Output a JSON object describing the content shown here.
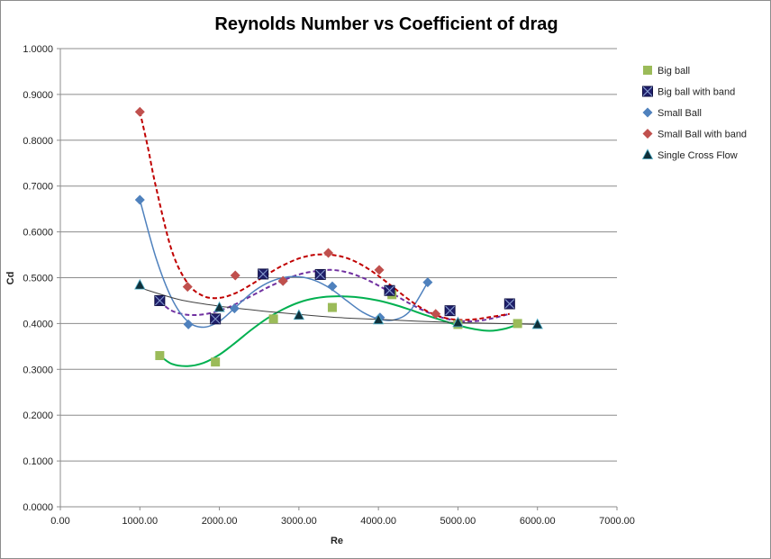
{
  "chart_data": {
    "type": "scatter",
    "title": "Reynolds Number vs Coefficient of drag",
    "xlabel": "Re",
    "ylabel": "Cd",
    "xlim": [
      0,
      7000
    ],
    "ylim": [
      0,
      1.0
    ],
    "xticks": [
      "0.00",
      "1000.00",
      "2000.00",
      "3000.00",
      "4000.00",
      "5000.00",
      "6000.00",
      "7000.00"
    ],
    "yticks": [
      "0.0000",
      "0.1000",
      "0.2000",
      "0.3000",
      "0.4000",
      "0.5000",
      "0.6000",
      "0.7000",
      "0.8000",
      "0.9000",
      "1.0000"
    ],
    "grid": "horizontal",
    "legend_position": "right",
    "series": [
      {
        "name": "Big ball",
        "marker": "square",
        "color": "#9bbb59",
        "x": [
          1250,
          1950,
          2680,
          3420,
          4170,
          5000,
          5750
        ],
        "y": [
          0.33,
          0.316,
          0.41,
          0.435,
          0.463,
          0.398,
          0.4
        ],
        "trend": {
          "style": "solid",
          "color": "#00b050",
          "x": [
            1250,
            1400,
            1600,
            1800,
            2000,
            2200,
            2400,
            2600,
            2800,
            3000,
            3200,
            3400,
            3600,
            3800,
            4000,
            4200,
            4400,
            4600,
            4800,
            5000,
            5200,
            5400,
            5600,
            5750
          ],
          "y": [
            0.33,
            0.312,
            0.307,
            0.314,
            0.332,
            0.358,
            0.386,
            0.411,
            0.431,
            0.446,
            0.455,
            0.459,
            0.459,
            0.456,
            0.45,
            0.441,
            0.43,
            0.418,
            0.407,
            0.396,
            0.388,
            0.384,
            0.389,
            0.398
          ]
        }
      },
      {
        "name": "Big ball with band",
        "marker": "square-x",
        "color": "#1f1f6b",
        "x": [
          1250,
          1950,
          2550,
          3270,
          4140,
          4900,
          5650
        ],
        "y": [
          0.45,
          0.41,
          0.508,
          0.507,
          0.472,
          0.428,
          0.443
        ],
        "trend": {
          "style": "dashed",
          "color": "#7030a0",
          "x": [
            1250,
            1400,
            1600,
            1800,
            2000,
            2200,
            2400,
            2600,
            2800,
            3000,
            3200,
            3400,
            3600,
            3800,
            4000,
            4200,
            4400,
            4600,
            4800,
            5000,
            5200,
            5400,
            5650
          ],
          "y": [
            0.448,
            0.428,
            0.419,
            0.42,
            0.428,
            0.442,
            0.46,
            0.478,
            0.494,
            0.507,
            0.514,
            0.517,
            0.512,
            0.5,
            0.483,
            0.463,
            0.443,
            0.426,
            0.413,
            0.406,
            0.405,
            0.41,
            0.421
          ]
        }
      },
      {
        "name": "Small Ball",
        "marker": "diamond",
        "color": "#4f81bd",
        "x": [
          1000,
          1610,
          2190,
          2800,
          3420,
          4020,
          4620
        ],
        "y": [
          0.67,
          0.398,
          0.433,
          0.493,
          0.481,
          0.413,
          0.49
        ],
        "trend": {
          "style": "solid",
          "color": "#4f81bd",
          "x": [
            1000,
            1200,
            1400,
            1600,
            1800,
            2000,
            2200,
            2400,
            2600,
            2800,
            3000,
            3200,
            3400,
            3600,
            3800,
            4000,
            4200,
            4400,
            4620
          ],
          "y": [
            0.67,
            0.545,
            0.455,
            0.405,
            0.392,
            0.405,
            0.435,
            0.466,
            0.488,
            0.5,
            0.502,
            0.494,
            0.476,
            0.45,
            0.425,
            0.41,
            0.408,
            0.428,
            0.49
          ]
        }
      },
      {
        "name": "Small Ball with band",
        "marker": "diamond",
        "color": "#c0504d",
        "x": [
          1000,
          1600,
          2200,
          2800,
          3370,
          4010,
          4720
        ],
        "y": [
          0.862,
          0.48,
          0.505,
          0.493,
          0.554,
          0.517,
          0.421
        ],
        "trend": {
          "style": "dashed",
          "color": "#c00000",
          "x": [
            1000,
            1100,
            1200,
            1400,
            1600,
            1800,
            2000,
            2200,
            2400,
            2600,
            2800,
            3000,
            3200,
            3400,
            3600,
            3800,
            4000,
            4200,
            4400,
            4600,
            4800,
            5000,
            5200,
            5400,
            5650
          ],
          "y": [
            0.862,
            0.785,
            0.7,
            0.56,
            0.488,
            0.46,
            0.456,
            0.466,
            0.485,
            0.507,
            0.527,
            0.542,
            0.55,
            0.55,
            0.543,
            0.527,
            0.504,
            0.477,
            0.45,
            0.428,
            0.414,
            0.408,
            0.409,
            0.414,
            0.421
          ]
        }
      },
      {
        "name": "Single Cross Flow",
        "marker": "triangle",
        "color": "#10303a",
        "x": [
          1000,
          2000,
          3000,
          4000,
          5000,
          6000
        ],
        "y": [
          0.484,
          0.435,
          0.418,
          0.408,
          0.402,
          0.398
        ],
        "trend": {
          "style": "solid",
          "color": "#404040",
          "x": [
            1000,
            1500,
            2000,
            2500,
            3000,
            3500,
            4000,
            4500,
            5000,
            5500,
            6000
          ],
          "y": [
            0.478,
            0.452,
            0.438,
            0.428,
            0.42,
            0.413,
            0.409,
            0.405,
            0.402,
            0.4,
            0.398
          ]
        }
      }
    ]
  }
}
